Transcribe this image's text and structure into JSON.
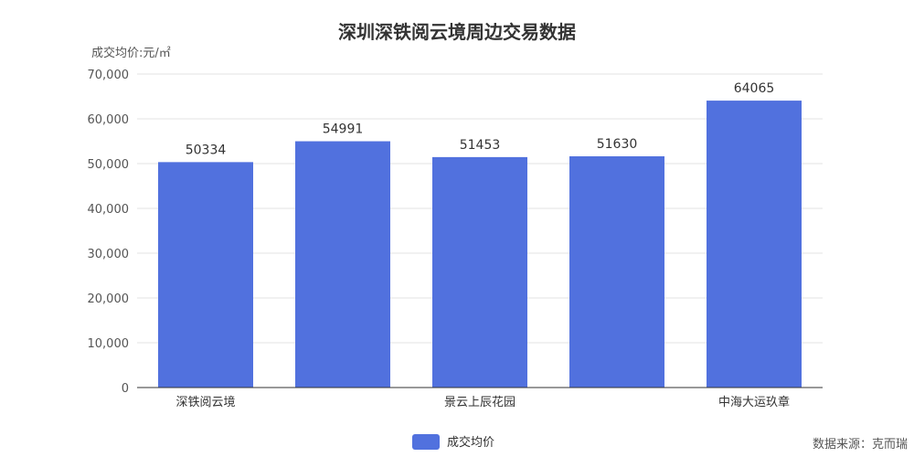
{
  "chart_data": {
    "type": "bar",
    "title": "深圳深铁阅云境周边交易数据",
    "ylabel": "成交均价:元/㎡",
    "xlabel": "",
    "categories": [
      "深铁阅云境",
      "",
      "景云上辰花园",
      "",
      "中海大运玖章"
    ],
    "series": [
      {
        "name": "成交均价",
        "values": [
          50334,
          54991,
          51453,
          51630,
          64065
        ],
        "color": "#5171de"
      }
    ],
    "ylim": [
      0,
      70000
    ],
    "yticks": [
      "0",
      "10,000",
      "20,000",
      "30,000",
      "40,000",
      "50,000",
      "60,000",
      "70,000"
    ],
    "grid": true,
    "legend_position": "bottom-center",
    "source": "数据来源：克而瑞"
  }
}
